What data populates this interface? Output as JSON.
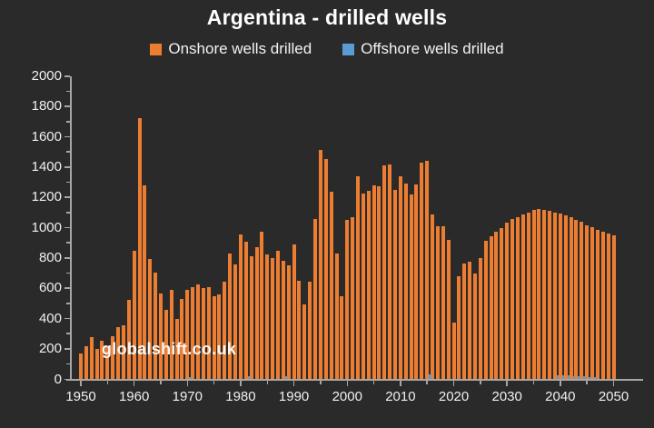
{
  "title": "Argentina - drilled wells",
  "watermark": "globalshift.co.uk",
  "legend": [
    {
      "label": "Onshore wells drilled",
      "color": "#ED7D31"
    },
    {
      "label": "Offshore wells drilled",
      "color": "#5B9BD5"
    }
  ],
  "colors": {
    "background": "#2a2a2a",
    "axis": "#a6a6a6",
    "text": "#f2f2f2",
    "onshore": "#ED7D31",
    "offshore": "#5B9BD5"
  },
  "chart_data": {
    "type": "bar",
    "title": "Argentina - drilled wells",
    "xlabel": "",
    "ylabel": "",
    "x_start": 1950,
    "x_end": 2050,
    "ylim": [
      0,
      2000
    ],
    "y_major_tick": 200,
    "y_minor_tick": 100,
    "x_label_interval": 10,
    "x_tick_interval": 5,
    "grid": false,
    "legend_position": "top",
    "y_tick_labels": [
      "0",
      "200",
      "400",
      "600",
      "800",
      "1000",
      "1200",
      "1400",
      "1600",
      "1800",
      "2000"
    ],
    "x_tick_labels": [
      "1950",
      "1960",
      "1970",
      "1980",
      "1990",
      "2000",
      "2010",
      "2020",
      "2030",
      "2040",
      "2050"
    ],
    "series": [
      {
        "name": "Onshore wells drilled",
        "color": "#ED7D31",
        "values": [
          165,
          215,
          275,
          200,
          250,
          215,
          280,
          340,
          355,
          520,
          845,
          1720,
          1280,
          790,
          700,
          565,
          455,
          585,
          395,
          525,
          590,
          605,
          625,
          600,
          605,
          545,
          555,
          640,
          830,
          755,
          955,
          905,
          810,
          870,
          970,
          820,
          800,
          845,
          780,
          750,
          890,
          650,
          490,
          640,
          1055,
          1510,
          1450,
          1235,
          830,
          545,
          1050,
          1065,
          1335,
          1225,
          1240,
          1280,
          1270,
          1410,
          1415,
          1250,
          1340,
          1290,
          1220,
          1285,
          1425,
          1440,
          1085,
          1010,
          1005,
          920,
          370,
          680,
          760,
          775,
          695,
          795,
          910,
          940,
          970,
          995,
          1030,
          1055,
          1070,
          1085,
          1100,
          1115,
          1120,
          1115,
          1110,
          1100,
          1090,
          1080,
          1065,
          1050,
          1035,
          1015,
          1000,
          985,
          970,
          958,
          945
        ]
      },
      {
        "name": "Offshore wells drilled",
        "color": "#5B9BD5",
        "values_by_year": {
          "1970": 12,
          "1981": 15,
          "1988": 18,
          "2015": 30,
          "2039": 25,
          "2040": 25,
          "2041": 22,
          "2042": 20,
          "2043": 18,
          "2044": 16,
          "2045": 14,
          "2046": 12
        }
      }
    ]
  }
}
